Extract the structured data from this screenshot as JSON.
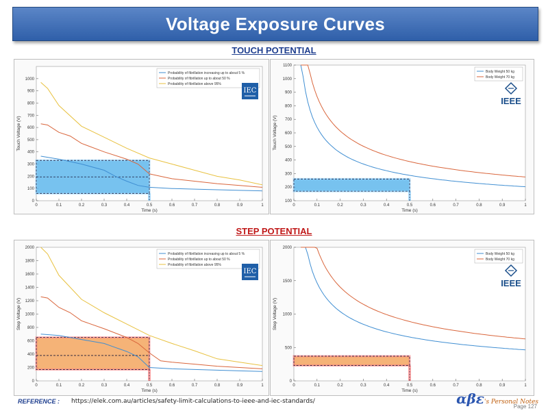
{
  "page": {
    "title": "Voltage Exposure Curves",
    "touch_section": "TOUCH POTENTIAL",
    "step_section": "STEP POTENTIAL",
    "reference_label": "REFERENCE :",
    "reference_url": "https://elek.com.au/articles/safety-limit-calculations-to-ieee-and-iec-standards/",
    "brand_logo": "αβε",
    "brand_text": "'s Personal Notes",
    "page_number": "Page 127"
  },
  "colors": {
    "blue": "#3f8ed2",
    "red": "#d9653b",
    "yellow": "#e8c13f",
    "touch_box_fill": "#4aaee9",
    "step_box_fill": "#f2994a",
    "iec_blue": "#1f5fa8",
    "ieee_blue": "#1a4e8a"
  },
  "chart_data": [
    {
      "id": "touch-iec",
      "type": "line",
      "xlabel": "Time (s)",
      "ylabel": "Touch Voltage (V)",
      "xlim": [
        0,
        1
      ],
      "ylim": [
        0,
        1100
      ],
      "xticks": [
        "0",
        "0.1",
        "0.2",
        "0.3",
        "0.4",
        "0.5",
        "0.6",
        "0.7",
        "0.8",
        "0.9",
        "1"
      ],
      "yticks": [
        "0",
        "100",
        "200",
        "300",
        "400",
        "500",
        "600",
        "700",
        "800",
        "900",
        "1000"
      ],
      "legend_position": "top-right",
      "logo": "IEC",
      "series": [
        {
          "name": "Probability of fibrillation increasing up to about 5 %",
          "color": "#3f8ed2",
          "x": [
            0.02,
            0.1,
            0.2,
            0.3,
            0.35,
            0.4,
            0.45,
            0.5,
            0.6,
            0.7,
            0.8,
            0.9,
            1.0
          ],
          "y": [
            365,
            340,
            300,
            250,
            200,
            160,
            125,
            110,
            100,
            95,
            90,
            85,
            80
          ]
        },
        {
          "name": "Probability of fibrillation up to about 50 %",
          "color": "#d9653b",
          "x": [
            0.02,
            0.05,
            0.1,
            0.15,
            0.2,
            0.3,
            0.4,
            0.45,
            0.5,
            0.55,
            0.6,
            0.7,
            0.8,
            0.9,
            1.0
          ],
          "y": [
            630,
            620,
            560,
            530,
            470,
            400,
            340,
            300,
            220,
            200,
            180,
            160,
            140,
            125,
            110
          ]
        },
        {
          "name": "Probability of fibrillation above 95%",
          "color": "#e8c13f",
          "x": [
            0.02,
            0.05,
            0.1,
            0.2,
            0.3,
            0.4,
            0.5,
            0.6,
            0.7,
            0.8,
            0.9,
            1.0
          ],
          "y": [
            970,
            920,
            780,
            610,
            520,
            430,
            350,
            300,
            250,
            200,
            170,
            130
          ]
        }
      ],
      "highlight": {
        "x": [
          0,
          0.5
        ],
        "y": [
          60,
          330
        ],
        "mid": 195
      }
    },
    {
      "id": "touch-ieee",
      "type": "line",
      "xlabel": "Time (s)",
      "ylabel": "Touch Voltage (V)",
      "xlim": [
        0,
        1
      ],
      "ylim": [
        100,
        1100
      ],
      "xticks": [
        "0",
        "0.1",
        "0.2",
        "0.3",
        "0.4",
        "0.5",
        "0.6",
        "0.7",
        "0.8",
        "0.9",
        "1"
      ],
      "yticks": [
        "100",
        "200",
        "300",
        "400",
        "500",
        "600",
        "700",
        "800",
        "900",
        "1000",
        "1100"
      ],
      "legend_position": "top-right",
      "logo": "IEEE",
      "series": [
        {
          "name": "Body Weight 50 kg",
          "color": "#3f8ed2",
          "k": 0.116,
          "base": 1000
        },
        {
          "name": "Body Weight 70 kg",
          "color": "#d9653b",
          "k": 0.157,
          "base": 1000
        }
      ],
      "curve_rho": 500,
      "curve_coef": 1.5,
      "x_start": 0.03,
      "highlight": {
        "x": [
          0,
          0.5
        ],
        "y": [
          170,
          260
        ]
      }
    },
    {
      "id": "step-iec",
      "type": "line",
      "xlabel": "Time (s)",
      "ylabel": "Step Voltage (V)",
      "xlim": [
        0,
        1
      ],
      "ylim": [
        0,
        2000
      ],
      "xticks": [
        "0",
        "0.1",
        "0.2",
        "0.3",
        "0.4",
        "0.5",
        "0.6",
        "0.7",
        "0.8",
        "0.9",
        "1"
      ],
      "yticks": [
        "0",
        "200",
        "400",
        "600",
        "800",
        "1000",
        "1200",
        "1400",
        "1600",
        "1800",
        "2000"
      ],
      "legend_position": "top-right",
      "logo": "IEC",
      "series": [
        {
          "name": "Probability of fibrillation increasing up to about 5 %",
          "color": "#3f8ed2",
          "x": [
            0.02,
            0.1,
            0.2,
            0.3,
            0.35,
            0.4,
            0.45,
            0.5,
            0.6,
            0.7,
            0.8,
            0.9,
            1.0
          ],
          "y": [
            700,
            680,
            620,
            560,
            500,
            440,
            360,
            200,
            180,
            170,
            160,
            150,
            140
          ]
        },
        {
          "name": "Probability of fibrillation up to about 50 %",
          "color": "#d9653b",
          "x": [
            0.02,
            0.05,
            0.1,
            0.15,
            0.2,
            0.3,
            0.4,
            0.45,
            0.5,
            0.55,
            0.6,
            0.7,
            0.8,
            0.9,
            1.0
          ],
          "y": [
            1260,
            1240,
            1100,
            1020,
            900,
            780,
            650,
            560,
            420,
            300,
            280,
            250,
            220,
            200,
            180
          ]
        },
        {
          "name": "Probability of fibrillation above 95%",
          "color": "#e8c13f",
          "x": [
            0.02,
            0.05,
            0.1,
            0.2,
            0.3,
            0.4,
            0.5,
            0.6,
            0.7,
            0.8,
            0.9,
            1.0
          ],
          "y": [
            2000,
            1900,
            1580,
            1220,
            1020,
            850,
            680,
            560,
            450,
            330,
            280,
            230
          ]
        }
      ],
      "highlight": {
        "x": [
          0,
          0.5
        ],
        "y": [
          170,
          650
        ],
        "mid": 380
      }
    },
    {
      "id": "step-ieee",
      "type": "line",
      "xlabel": "Time (s)",
      "ylabel": "Step Voltage (V)",
      "xlim": [
        0,
        1
      ],
      "ylim": [
        0,
        2000
      ],
      "xticks": [
        "0",
        "0.1",
        "0.2",
        "0.3",
        "0.4",
        "0.5",
        "0.6",
        "0.7",
        "0.8",
        "0.9",
        "1"
      ],
      "yticks": [
        "0",
        "500",
        "1000",
        "1500",
        "2000"
      ],
      "legend_position": "top-right",
      "logo": "IEEE",
      "series": [
        {
          "name": "Body Weight 50 kg",
          "color": "#3f8ed2",
          "k": 0.116,
          "base": 1000
        },
        {
          "name": "Body Weight 70 kg",
          "color": "#d9653b",
          "k": 0.157,
          "base": 1000
        }
      ],
      "curve_rho": 500,
      "curve_coef": 6,
      "x_start": 0.03,
      "highlight": {
        "x": [
          0,
          0.5
        ],
        "y": [
          230,
          370
        ]
      }
    }
  ]
}
